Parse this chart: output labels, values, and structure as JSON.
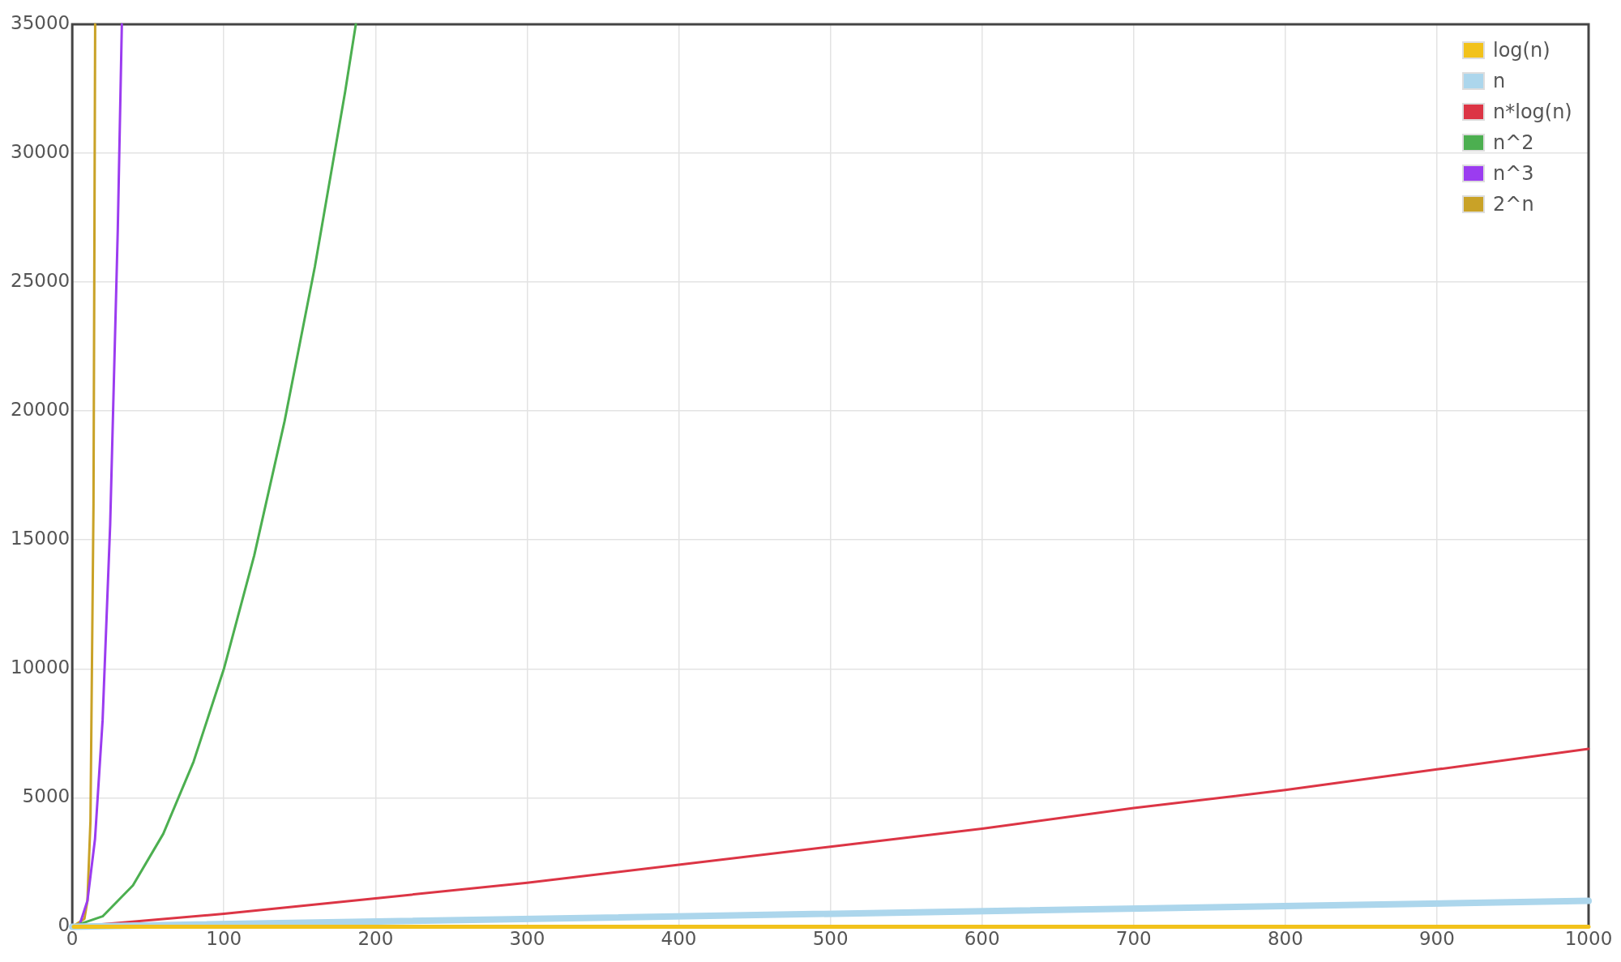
{
  "chart_data": {
    "type": "line",
    "xlim": [
      0,
      1000
    ],
    "ylim": [
      0,
      35000
    ],
    "xticks": [
      0,
      100,
      200,
      300,
      400,
      500,
      600,
      700,
      800,
      900,
      1000
    ],
    "yticks": [
      0,
      5000,
      10000,
      15000,
      20000,
      25000,
      30000,
      35000
    ],
    "grid": true,
    "legend": "top right",
    "marker": "none",
    "line_style": "solid",
    "series": [
      {
        "name": "log(n)",
        "color": "#f2c21b",
        "x": [
          1,
          1000
        ],
        "values": [
          0,
          0
        ]
      },
      {
        "name": "n",
        "color": "#acd6ec",
        "x": [
          0,
          1000
        ],
        "values": [
          0,
          1000
        ]
      },
      {
        "name": "n*log(n)",
        "color": "#dc3545",
        "x": [
          1,
          100,
          200,
          300,
          400,
          500,
          600,
          700,
          800,
          900,
          1000
        ],
        "values": [
          0,
          500,
          1100,
          1700,
          2400,
          3100,
          3800,
          4600,
          5300,
          6100,
          6900
        ]
      },
      {
        "name": "n^2",
        "color": "#4caf50",
        "x": [
          0,
          20,
          40,
          60,
          80,
          100,
          120,
          140,
          160,
          180,
          187
        ],
        "values": [
          0,
          400,
          1600,
          3600,
          6400,
          10000,
          14400,
          19600,
          25600,
          32400,
          35000
        ]
      },
      {
        "name": "n^3",
        "color": "#9b3cf0",
        "x": [
          0,
          5,
          10,
          15,
          20,
          25,
          30,
          32.7
        ],
        "values": [
          0,
          100,
          1000,
          3400,
          8000,
          15600,
          27000,
          35000
        ]
      },
      {
        "name": "2^n",
        "color": "#c9a227",
        "x": [
          0,
          8,
          10,
          12,
          14,
          15.1
        ],
        "values": [
          0,
          300,
          1000,
          4100,
          16400,
          35000
        ]
      }
    ]
  }
}
